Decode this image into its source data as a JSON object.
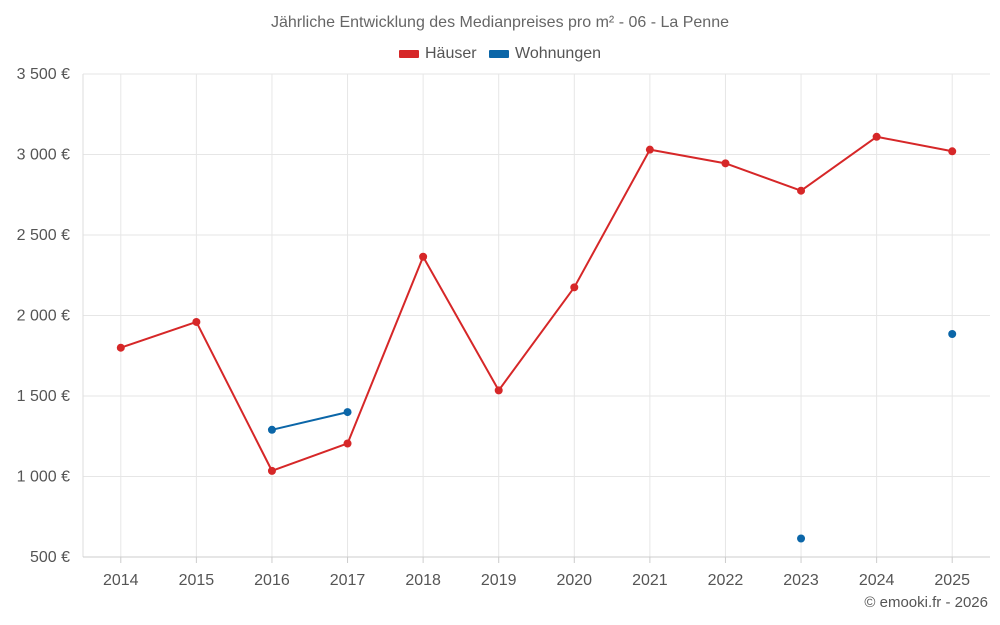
{
  "chart_data": {
    "type": "line",
    "title": "Jährliche Entwicklung des Medianpreises pro m² - 06 - La Penne",
    "categories": [
      "2014",
      "2015",
      "2016",
      "2017",
      "2018",
      "2019",
      "2020",
      "2021",
      "2022",
      "2023",
      "2024",
      "2025"
    ],
    "series": [
      {
        "name": "Häuser",
        "color": "#d62728",
        "values": [
          1800,
          1960,
          1035,
          1205,
          2365,
          1535,
          2175,
          3030,
          2945,
          2775,
          3110,
          3020
        ]
      },
      {
        "name": "Wohnungen",
        "color": "#0b66a8",
        "values": [
          null,
          null,
          1290,
          1400,
          null,
          null,
          null,
          null,
          null,
          615,
          null,
          1885
        ]
      }
    ],
    "ylim": [
      500,
      3500
    ],
    "yticks": [
      500,
      1000,
      1500,
      2000,
      2500,
      3000,
      3500
    ],
    "ytick_labels": [
      "500 €",
      "1 000 €",
      "1 500 €",
      "2 000 €",
      "2 500 €",
      "3 000 €",
      "3 500 €"
    ],
    "xlabel": "",
    "ylabel": "",
    "grid": true,
    "legend_position": "top-center"
  },
  "credit": "© emooki.fr - 2026"
}
